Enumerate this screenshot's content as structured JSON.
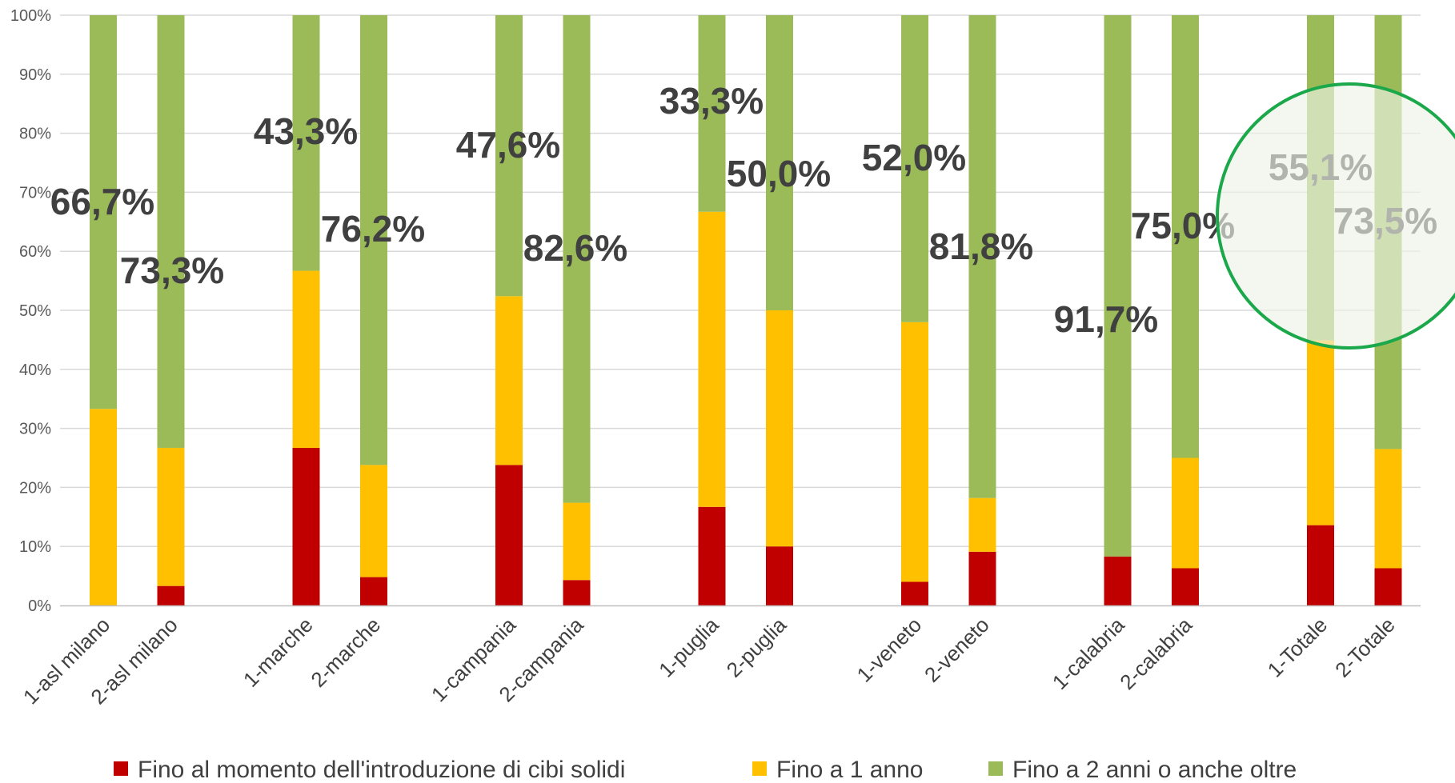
{
  "chart_data": {
    "type": "bar",
    "stacked": true,
    "categories": [
      "1-asl milano",
      "2-asl milano",
      "1-marche",
      "2-marche",
      "1-campania",
      "2-campania",
      "1-puglia",
      "2-puglia",
      "1-veneto",
      "2-veneto",
      "1-calabria",
      "2-calabria",
      "1-Totale",
      "2-Totale"
    ],
    "series": [
      {
        "name": "Fino al momento dell'introduzione di cibi solidi",
        "color": "#c00000",
        "values": [
          0,
          3.3,
          26.7,
          4.8,
          23.8,
          4.3,
          16.7,
          10.0,
          4.0,
          9.1,
          8.3,
          6.3,
          13.6,
          6.3
        ]
      },
      {
        "name": "Fino a 1 anno",
        "color": "#ffc000",
        "values": [
          33.3,
          23.4,
          30.0,
          19.0,
          28.6,
          13.1,
          50.0,
          40.0,
          44.0,
          9.1,
          0,
          18.7,
          31.3,
          20.2
        ]
      },
      {
        "name": "Fino a 2 anni o anche oltre",
        "color": "#9bbb59",
        "values": [
          66.7,
          73.3,
          43.3,
          76.2,
          47.6,
          82.6,
          33.3,
          50.0,
          52.0,
          81.8,
          91.7,
          75.0,
          55.1,
          73.5
        ]
      }
    ],
    "data_labels": [
      "66,7%",
      "73,3%",
      "43,3%",
      "76,2%",
      "47,6%",
      "82,6%",
      "33,3%",
      "50,0%",
      "52,0%",
      "81,8%",
      "91,7%",
      "75,0%",
      "55,1%",
      "73,5%"
    ],
    "y_ticks": [
      "0%",
      "10%",
      "20%",
      "30%",
      "40%",
      "50%",
      "60%",
      "70%",
      "80%",
      "90%",
      "100%"
    ],
    "ylim": [
      0,
      100
    ],
    "grid": true,
    "legend_position": "bottom",
    "highlight": {
      "categories": [
        "1-Totale",
        "2-Totale"
      ],
      "color": "#1aa84a"
    }
  }
}
